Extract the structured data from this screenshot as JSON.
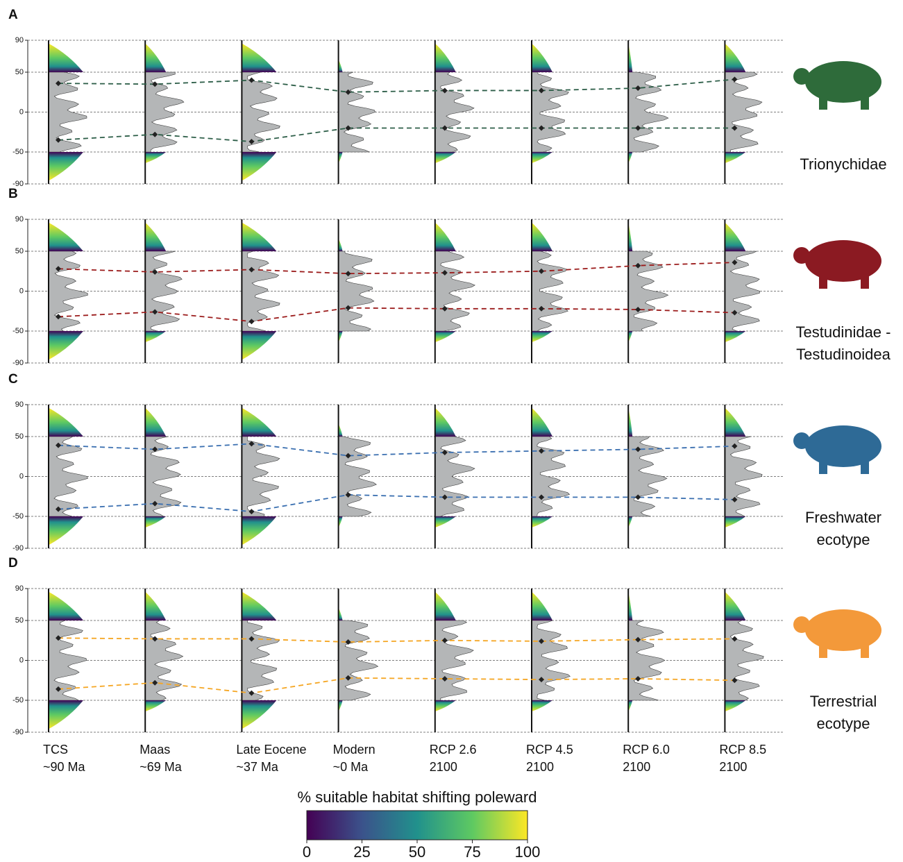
{
  "chart_data": [
    {
      "type": "line",
      "panel_label": "A",
      "taxon": [
        "Trionychidae"
      ],
      "animal_color": "#2e6b3a",
      "ylim": [
        -90,
        90
      ],
      "yticks": [
        90,
        50,
        0,
        -50,
        -90
      ],
      "grid": true,
      "series": [
        {
          "color": "#2d5e48",
          "values": [
            36,
            35,
            40,
            25,
            27,
            27,
            30,
            41
          ]
        },
        {
          "color": "#2d5e48",
          "values": [
            -35,
            -28,
            -37,
            -20,
            -20,
            -20,
            -20,
            -20
          ]
        }
      ]
    },
    {
      "type": "line",
      "panel_label": "B",
      "taxon": [
        "Testudinidae -",
        "Testudinoidea"
      ],
      "animal_color": "#8b1a22",
      "ylim": [
        -90,
        90
      ],
      "yticks": [
        90,
        50,
        0,
        -50,
        -90
      ],
      "grid": true,
      "series": [
        {
          "color": "#9b1b1b",
          "values": [
            28,
            24,
            27,
            22,
            23,
            25,
            32,
            36
          ]
        },
        {
          "color": "#9b1b1b",
          "values": [
            -32,
            -26,
            -38,
            -21,
            -22,
            -22,
            -23,
            -27
          ]
        }
      ]
    },
    {
      "type": "line",
      "panel_label": "C",
      "taxon": [
        "Freshwater",
        "ecotype"
      ],
      "animal_color": "#2e6a96",
      "ylim": [
        -90,
        90
      ],
      "yticks": [
        90,
        50,
        0,
        -50,
        -90
      ],
      "grid": true,
      "series": [
        {
          "color": "#3a6fb0",
          "values": [
            39,
            34,
            41,
            26,
            30,
            32,
            34,
            38
          ]
        },
        {
          "color": "#3a6fb0",
          "values": [
            -41,
            -34,
            -44,
            -23,
            -26,
            -26,
            -26,
            -29
          ]
        }
      ]
    },
    {
      "type": "line",
      "panel_label": "D",
      "taxon": [
        "Terrestrial",
        "ecotype"
      ],
      "animal_color": "#f3993a",
      "ylim": [
        -90,
        90
      ],
      "yticks": [
        90,
        50,
        0,
        -50,
        -90
      ],
      "grid": true,
      "categories": [
        [
          "TCS",
          "~90 Ma"
        ],
        [
          "Maas",
          "~69 Ma"
        ],
        [
          "Late Eocene",
          "~37 Ma"
        ],
        [
          "Modern",
          "~0 Ma"
        ],
        [
          "RCP 2.6",
          "2100"
        ],
        [
          "RCP 4.5",
          "2100"
        ],
        [
          "RCP 6.0",
          "2100"
        ],
        [
          "RCP 8.5",
          "2100"
        ]
      ],
      "series": [
        {
          "color": "#f5a623",
          "values": [
            28,
            27,
            27,
            23,
            25,
            24,
            26,
            27
          ]
        },
        {
          "color": "#f5a623",
          "values": [
            -36,
            -28,
            -41,
            -22,
            -23,
            -24,
            -23,
            -25
          ]
        }
      ]
    }
  ],
  "colorbar": {
    "title": "% suitable habitat shifting poleward",
    "lim": [
      0,
      100
    ],
    "ticks": [
      0,
      25,
      50,
      75,
      100
    ]
  }
}
